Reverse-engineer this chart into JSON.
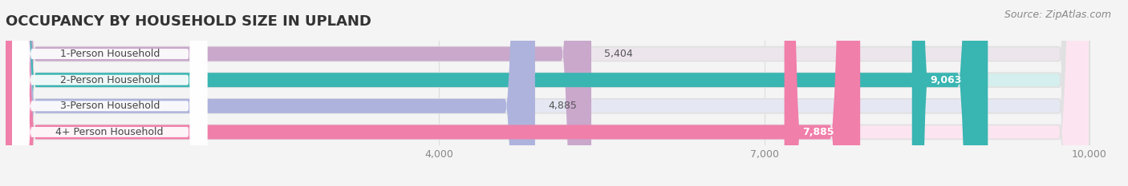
{
  "title": "OCCUPANCY BY HOUSEHOLD SIZE IN UPLAND",
  "source": "Source: ZipAtlas.com",
  "categories": [
    "1-Person Household",
    "2-Person Household",
    "3-Person Household",
    "4+ Person Household"
  ],
  "values": [
    5404,
    9063,
    4885,
    7885
  ],
  "bar_colors": [
    "#c9a8cc",
    "#39b5b2",
    "#adb3dc",
    "#f07faa"
  ],
  "bar_bg_colors": [
    "#ece5ec",
    "#d5eeee",
    "#e5e7f3",
    "#fce5f0"
  ],
  "value_labels": [
    "5,404",
    "9,063",
    "4,885",
    "7,885"
  ],
  "label_inside": [
    false,
    true,
    false,
    true
  ],
  "xmin": 0,
  "xmax": 10000,
  "xlim_left": 0,
  "xlim_right": 10000,
  "xticks": [
    4000,
    7000,
    10000
  ],
  "xtick_labels": [
    "4,000",
    "7,000",
    "10,000"
  ],
  "title_fontsize": 13,
  "source_fontsize": 9,
  "bar_label_fontsize": 9,
  "value_label_fontsize": 9,
  "bar_height": 0.55,
  "figsize": [
    14.06,
    2.33
  ],
  "dpi": 100,
  "bg_color": "#f4f4f4"
}
